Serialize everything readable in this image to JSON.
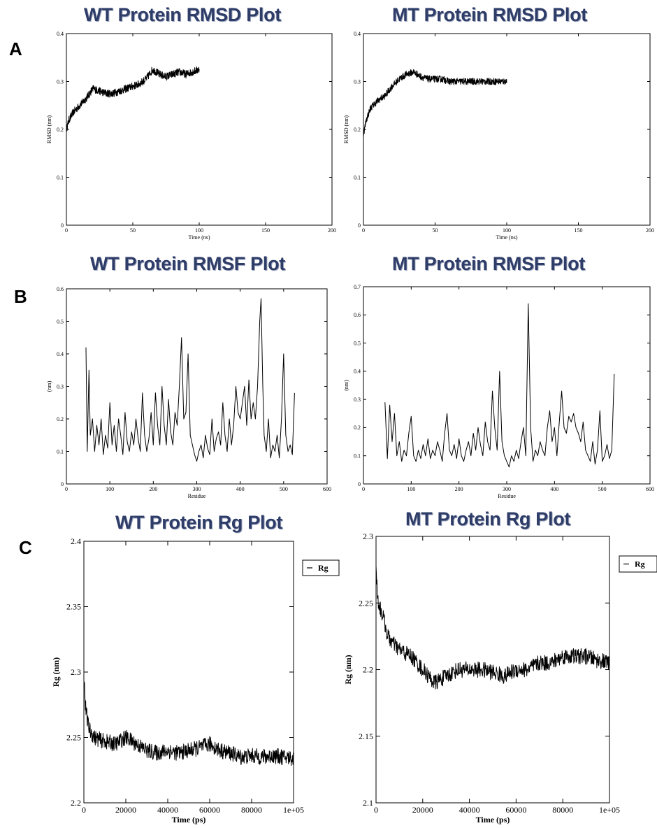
{
  "panel_labels": [
    "A",
    "B",
    "C"
  ],
  "chart_data": [
    {
      "id": "wt_rmsd",
      "type": "line",
      "title": "WT Protein RMSD Plot",
      "xlabel": "Time (ns)",
      "ylabel": "RMSD (nm)",
      "xlim": [
        0,
        200
      ],
      "ylim": [
        0,
        0.4
      ],
      "xticks": [
        0,
        50,
        100,
        150,
        200
      ],
      "yticks": [
        0,
        0.1,
        0.2,
        0.3,
        0.4
      ],
      "xtick_labels": [
        "0",
        "50",
        "100",
        "150",
        "200"
      ],
      "ytick_labels": [
        "0",
        "0.1",
        "0.2",
        "0.3",
        "0.4"
      ],
      "legend": null,
      "series": [
        {
          "x": [
            0,
            2,
            5,
            10,
            15,
            20,
            25,
            30,
            35,
            40,
            45,
            50,
            55,
            60,
            65,
            70,
            75,
            80,
            85,
            90,
            95,
            100
          ],
          "y": [
            0.2,
            0.22,
            0.235,
            0.25,
            0.265,
            0.285,
            0.28,
            0.275,
            0.275,
            0.28,
            0.285,
            0.29,
            0.295,
            0.305,
            0.325,
            0.315,
            0.31,
            0.315,
            0.32,
            0.315,
            0.32,
            0.325
          ],
          "noise": 0.008
        }
      ]
    },
    {
      "id": "mt_rmsd",
      "type": "line",
      "title": "MT Protein RMSD Plot",
      "xlabel": "Time (ns)",
      "ylabel": "RMSD (nm)",
      "xlim": [
        0,
        200
      ],
      "ylim": [
        0,
        0.4
      ],
      "xticks": [
        0,
        50,
        100,
        150,
        200
      ],
      "yticks": [
        0,
        0.1,
        0.2,
        0.3,
        0.4
      ],
      "xtick_labels": [
        "0",
        "50",
        "100",
        "150",
        "200"
      ],
      "ytick_labels": [
        "0",
        "0.1",
        "0.2",
        "0.3",
        "0.4"
      ],
      "legend": null,
      "series": [
        {
          "x": [
            0,
            2,
            5,
            10,
            15,
            20,
            25,
            30,
            35,
            40,
            45,
            50,
            55,
            60,
            65,
            70,
            75,
            80,
            85,
            90,
            95,
            100
          ],
          "y": [
            0.19,
            0.22,
            0.245,
            0.26,
            0.27,
            0.29,
            0.305,
            0.315,
            0.32,
            0.31,
            0.305,
            0.305,
            0.305,
            0.3,
            0.3,
            0.3,
            0.3,
            0.3,
            0.3,
            0.3,
            0.3,
            0.3
          ],
          "noise": 0.007
        }
      ]
    },
    {
      "id": "wt_rmsf",
      "type": "line",
      "title": "WT Protein RMSF Plot",
      "xlabel": "Residue",
      "ylabel": "(nm)",
      "xlim": [
        0,
        600
      ],
      "ylim": [
        0,
        0.6
      ],
      "xticks": [
        0,
        100,
        200,
        300,
        400,
        500,
        600
      ],
      "yticks": [
        0,
        0.1,
        0.2,
        0.3,
        0.4,
        0.5,
        0.6
      ],
      "xtick_labels": [
        "0",
        "100",
        "200",
        "300",
        "400",
        "500",
        "600"
      ],
      "ytick_labels": [
        "0",
        "0.1",
        "0.2",
        "0.3",
        "0.4",
        "0.5",
        "0.6"
      ],
      "legend": null,
      "series": [
        {
          "x": [
            45,
            48,
            52,
            55,
            60,
            65,
            70,
            75,
            80,
            85,
            90,
            95,
            100,
            105,
            110,
            115,
            120,
            125,
            130,
            135,
            140,
            145,
            150,
            155,
            160,
            165,
            170,
            175,
            180,
            185,
            190,
            195,
            200,
            205,
            210,
            215,
            220,
            225,
            230,
            235,
            240,
            245,
            250,
            255,
            260,
            265,
            270,
            275,
            280,
            285,
            290,
            295,
            300,
            305,
            310,
            315,
            320,
            325,
            330,
            335,
            340,
            345,
            350,
            355,
            360,
            365,
            370,
            375,
            380,
            385,
            390,
            395,
            400,
            405,
            410,
            415,
            420,
            425,
            430,
            435,
            440,
            445,
            448,
            452,
            455,
            460,
            465,
            470,
            475,
            480,
            485,
            490,
            495,
            500,
            505,
            510,
            515,
            520,
            525
          ],
          "y": [
            0.42,
            0.1,
            0.35,
            0.15,
            0.2,
            0.1,
            0.18,
            0.12,
            0.2,
            0.09,
            0.15,
            0.11,
            0.25,
            0.12,
            0.18,
            0.1,
            0.2,
            0.15,
            0.09,
            0.22,
            0.13,
            0.1,
            0.16,
            0.12,
            0.2,
            0.14,
            0.1,
            0.28,
            0.15,
            0.1,
            0.14,
            0.22,
            0.12,
            0.28,
            0.18,
            0.12,
            0.3,
            0.18,
            0.12,
            0.26,
            0.16,
            0.12,
            0.22,
            0.18,
            0.3,
            0.45,
            0.2,
            0.22,
            0.4,
            0.15,
            0.12,
            0.09,
            0.07,
            0.1,
            0.12,
            0.08,
            0.15,
            0.11,
            0.09,
            0.2,
            0.1,
            0.14,
            0.16,
            0.12,
            0.25,
            0.15,
            0.1,
            0.2,
            0.12,
            0.18,
            0.3,
            0.22,
            0.2,
            0.25,
            0.3,
            0.18,
            0.32,
            0.2,
            0.25,
            0.2,
            0.3,
            0.5,
            0.57,
            0.3,
            0.15,
            0.1,
            0.2,
            0.08,
            0.12,
            0.1,
            0.15,
            0.08,
            0.2,
            0.4,
            0.15,
            0.1,
            0.12,
            0.09,
            0.28
          ]
        }
      ]
    },
    {
      "id": "mt_rmsf",
      "type": "line",
      "title": "MT Protein RMSF Plot",
      "xlabel": "Residue",
      "ylabel": "(nm)",
      "xlim": [
        0,
        600
      ],
      "ylim": [
        0,
        0.7
      ],
      "xticks": [
        0,
        100,
        200,
        300,
        400,
        500,
        600
      ],
      "yticks": [
        0,
        0.1,
        0.2,
        0.3,
        0.4,
        0.5,
        0.6,
        0.7
      ],
      "xtick_labels": [
        "0",
        "100",
        "200",
        "300",
        "400",
        "500",
        "600"
      ],
      "ytick_labels": [
        "0",
        "0.1",
        "0.2",
        "0.3",
        "0.4",
        "0.5",
        "0.6",
        "0.7"
      ],
      "legend": null,
      "series": [
        {
          "x": [
            45,
            50,
            55,
            60,
            65,
            70,
            75,
            80,
            85,
            90,
            95,
            100,
            105,
            110,
            115,
            120,
            125,
            130,
            135,
            140,
            145,
            150,
            155,
            160,
            165,
            170,
            175,
            180,
            185,
            190,
            195,
            200,
            205,
            210,
            215,
            220,
            225,
            230,
            235,
            240,
            245,
            250,
            255,
            260,
            265,
            270,
            275,
            280,
            285,
            290,
            295,
            300,
            305,
            310,
            315,
            320,
            325,
            330,
            335,
            340,
            345,
            350,
            355,
            360,
            365,
            370,
            375,
            380,
            385,
            390,
            395,
            400,
            405,
            410,
            415,
            420,
            425,
            430,
            435,
            440,
            445,
            450,
            455,
            460,
            465,
            470,
            475,
            480,
            485,
            490,
            495,
            500,
            505,
            510,
            515,
            520,
            525
          ],
          "y": [
            0.29,
            0.09,
            0.28,
            0.15,
            0.25,
            0.1,
            0.15,
            0.08,
            0.12,
            0.1,
            0.18,
            0.24,
            0.1,
            0.08,
            0.12,
            0.09,
            0.14,
            0.1,
            0.16,
            0.09,
            0.12,
            0.1,
            0.15,
            0.12,
            0.08,
            0.18,
            0.25,
            0.12,
            0.1,
            0.14,
            0.09,
            0.16,
            0.1,
            0.08,
            0.12,
            0.15,
            0.1,
            0.18,
            0.12,
            0.2,
            0.14,
            0.1,
            0.22,
            0.15,
            0.12,
            0.33,
            0.2,
            0.12,
            0.4,
            0.15,
            0.1,
            0.08,
            0.06,
            0.1,
            0.08,
            0.12,
            0.09,
            0.15,
            0.2,
            0.1,
            0.64,
            0.2,
            0.08,
            0.12,
            0.1,
            0.15,
            0.12,
            0.1,
            0.2,
            0.26,
            0.15,
            0.2,
            0.1,
            0.22,
            0.33,
            0.2,
            0.18,
            0.24,
            0.22,
            0.25,
            0.2,
            0.18,
            0.15,
            0.22,
            0.12,
            0.1,
            0.08,
            0.15,
            0.07,
            0.12,
            0.26,
            0.08,
            0.1,
            0.14,
            0.09,
            0.12,
            0.39
          ]
        }
      ]
    },
    {
      "id": "wt_rg",
      "type": "line",
      "title": "WT Protein Rg Plot",
      "xlabel": "Time (ps)",
      "ylabel": "Rg (nm)",
      "xlim": [
        0,
        100000
      ],
      "ylim": [
        2.2,
        2.4
      ],
      "xticks": [
        0,
        20000,
        40000,
        60000,
        80000,
        100000
      ],
      "yticks": [
        2.2,
        2.25,
        2.3,
        2.35,
        2.4
      ],
      "xtick_labels": [
        "0",
        "20000",
        "40000",
        "60000",
        "80000",
        "1e+05"
      ],
      "ytick_labels": [
        "2.2",
        "2.25",
        "2.3",
        "2.35",
        "2.4"
      ],
      "legend": {
        "label": "Rg",
        "position": "outside-top-right"
      },
      "series": [
        {
          "name": "Rg",
          "x": [
            0,
            500,
            1000,
            2000,
            3000,
            5000,
            8000,
            10000,
            15000,
            20000,
            25000,
            30000,
            35000,
            40000,
            45000,
            50000,
            55000,
            60000,
            65000,
            70000,
            75000,
            80000,
            85000,
            90000,
            95000,
            100000
          ],
          "y": [
            2.3,
            2.28,
            2.27,
            2.26,
            2.255,
            2.25,
            2.248,
            2.247,
            2.245,
            2.25,
            2.245,
            2.24,
            2.238,
            2.24,
            2.238,
            2.24,
            2.242,
            2.245,
            2.24,
            2.238,
            2.235,
            2.236,
            2.235,
            2.236,
            2.235,
            2.234
          ],
          "noise": 0.006
        }
      ]
    },
    {
      "id": "mt_rg",
      "type": "line",
      "title": "MT Protein Rg Plot",
      "xlabel": "Time (ps)",
      "ylabel": "Rg (nm)",
      "xlim": [
        0,
        100000
      ],
      "ylim": [
        2.1,
        2.3
      ],
      "xticks": [
        0,
        20000,
        40000,
        60000,
        80000,
        100000
      ],
      "yticks": [
        2.1,
        2.15,
        2.2,
        2.25,
        2.3
      ],
      "xtick_labels": [
        "0",
        "20000",
        "40000",
        "60000",
        "80000",
        "1e+05"
      ],
      "ytick_labels": [
        "2.1",
        "2.15",
        "2.2",
        "2.25",
        "2.3"
      ],
      "legend": {
        "label": "Rg",
        "position": "outside-top-right"
      },
      "series": [
        {
          "name": "Rg",
          "x": [
            0,
            500,
            1000,
            2000,
            3000,
            5000,
            8000,
            10000,
            15000,
            20000,
            25000,
            30000,
            35000,
            40000,
            45000,
            50000,
            55000,
            60000,
            65000,
            70000,
            75000,
            80000,
            85000,
            90000,
            95000,
            100000
          ],
          "y": [
            2.28,
            2.26,
            2.25,
            2.245,
            2.24,
            2.225,
            2.218,
            2.215,
            2.21,
            2.2,
            2.19,
            2.195,
            2.2,
            2.2,
            2.2,
            2.198,
            2.195,
            2.2,
            2.2,
            2.205,
            2.205,
            2.21,
            2.21,
            2.21,
            2.207,
            2.205
          ],
          "noise": 0.006
        }
      ]
    }
  ]
}
